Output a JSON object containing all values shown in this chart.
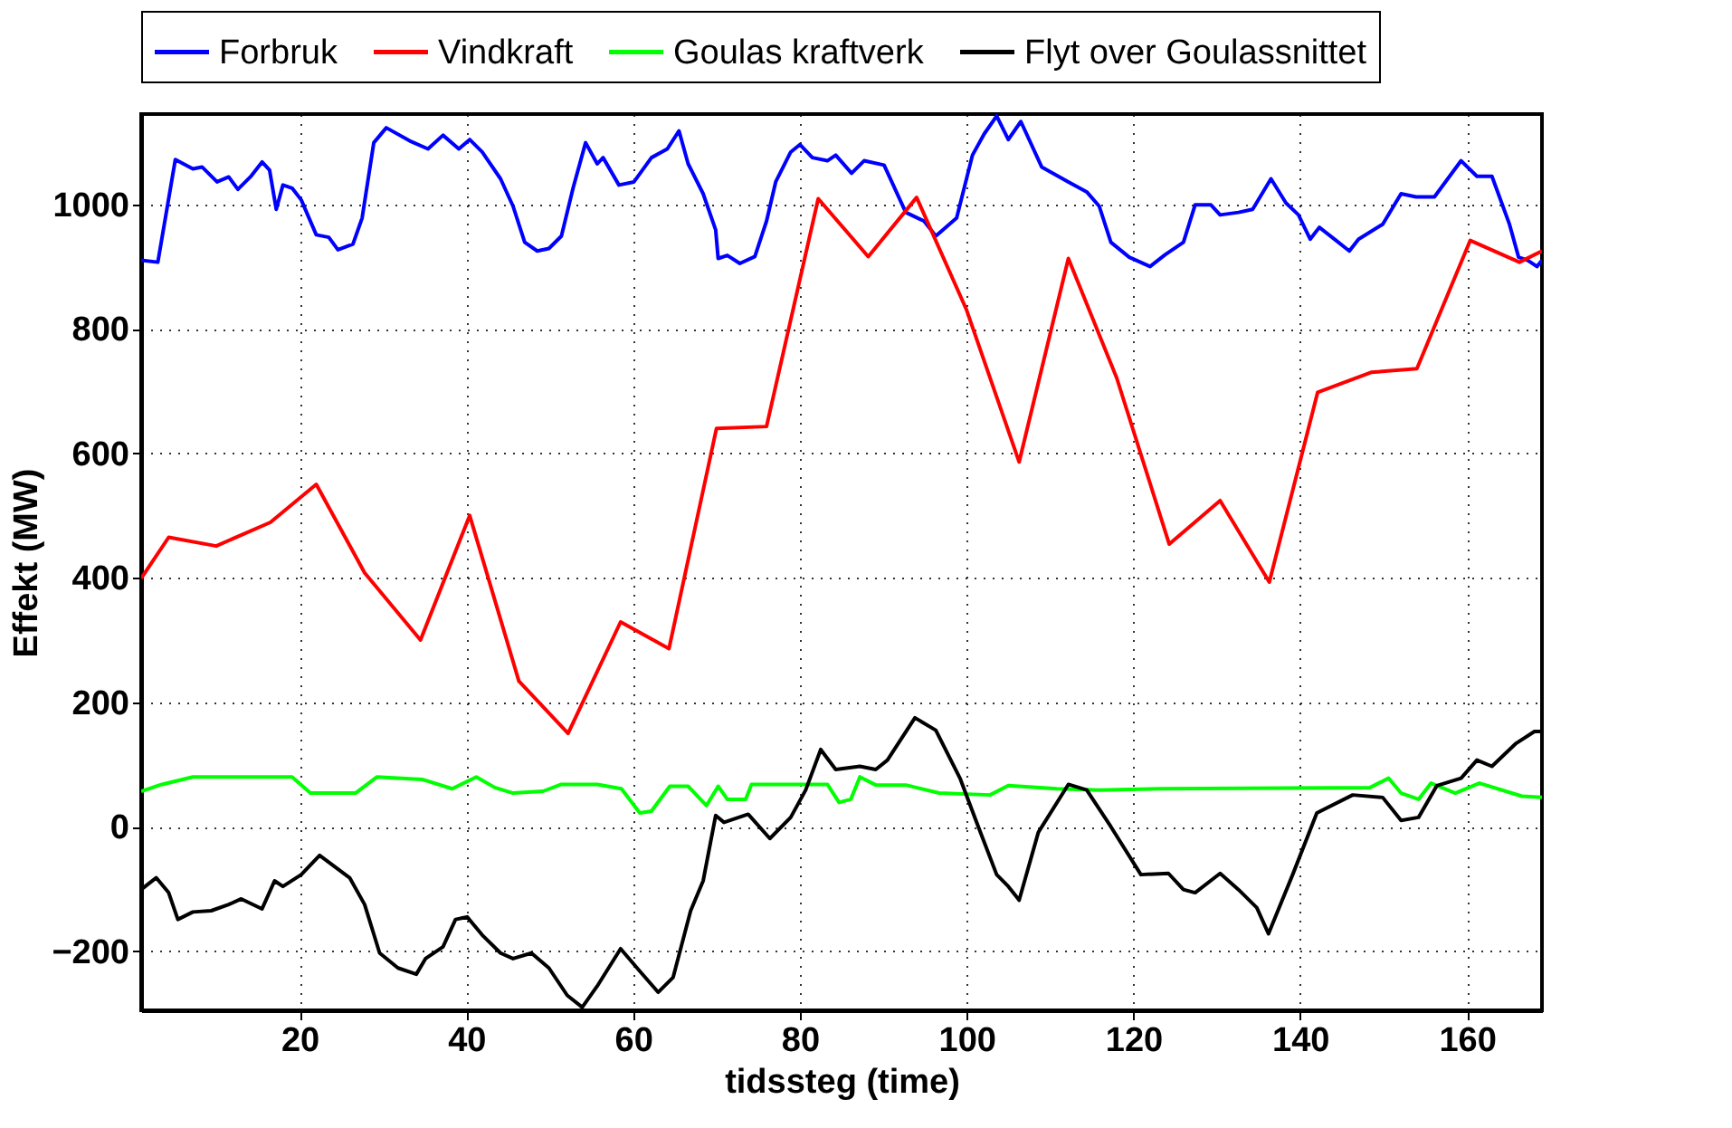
{
  "chart_data": {
    "type": "line",
    "xlabel": "tidssteg (time)",
    "ylabel": "Effekt (MW)",
    "xlim": [
      1,
      169
    ],
    "ylim": [
      -295,
      1145
    ],
    "xticks": [
      20,
      40,
      60,
      80,
      100,
      120,
      140,
      160
    ],
    "yticks": [
      -200,
      0,
      200,
      400,
      600,
      800,
      1000
    ],
    "grid": true,
    "legend": "top",
    "line_style": "solid",
    "marker": "none",
    "series": [
      {
        "name": "Forbruk",
        "color": "#0000ff",
        "x": [
          1,
          3,
          5.1,
          7.2,
          8.3,
          10.1,
          11.5,
          12.6,
          14.1,
          15.5,
          16.4,
          17.2,
          18,
          19.1,
          20.2,
          22,
          23.5,
          24.6,
          26.4,
          27.5,
          28.9,
          30.4,
          33.2,
          35.4,
          37.2,
          39.1,
          40.4,
          41.9,
          44.1,
          45.6,
          47,
          48.5,
          49.9,
          51.4,
          52.8,
          54.3,
          55.7,
          56.4,
          58.3,
          60.1,
          62.2,
          64.1,
          65.5,
          66.6,
          68.4,
          69.9,
          70.2,
          71.3,
          72.8,
          74.6,
          76,
          77.1,
          78.9,
          80,
          81.5,
          83.3,
          84.3,
          86.2,
          87.7,
          90.1,
          92.7,
          94.9,
          96.3,
          98.8,
          100.7,
          102.1,
          103.6,
          105,
          106.5,
          109,
          112.2,
          114.4,
          115.9,
          117.3,
          119.5,
          122,
          123.8,
          126,
          127.4,
          129.3,
          130.4,
          132.6,
          134.3,
          136.5,
          138.3,
          139.8,
          141.2,
          142.3,
          144.1,
          145.9,
          147,
          149.9,
          152.1,
          153.9,
          156.1,
          159.3,
          161.2,
          163,
          165.1,
          166.2,
          167.3,
          168.4,
          169
        ],
        "values": [
          910,
          907,
          1072,
          1057,
          1060,
          1036,
          1044,
          1024,
          1044,
          1068,
          1055,
          992,
          1031,
          1026,
          1007,
          951,
          947,
          927,
          936,
          978,
          1099,
          1123,
          1102,
          1089,
          1111,
          1089,
          1104,
          1084,
          1041,
          997,
          939,
          925,
          929,
          949,
          1026,
          1099,
          1065,
          1075,
          1031,
          1036,
          1075,
          1089,
          1118,
          1065,
          1017,
          959,
          913,
          918,
          905,
          916,
          973,
          1036,
          1084,
          1096,
          1075,
          1070,
          1079,
          1050,
          1070,
          1063,
          987,
          973,
          949,
          978,
          1079,
          1113,
          1142,
          1104,
          1133,
          1060,
          1036,
          1020,
          997,
          939,
          915,
          900,
          919,
          939,
          999,
          999,
          983,
          987,
          992,
          1041,
          1002,
          983,
          944,
          963,
          944,
          925,
          944,
          968,
          1017,
          1012,
          1012,
          1070,
          1045,
          1045,
          968,
          915,
          910,
          900,
          910
        ]
      },
      {
        "name": "Vindkraft",
        "color": "#ff0000",
        "x": [
          1,
          4.3,
          10,
          16.5,
          22,
          27.8,
          34.5,
          40.4,
          46.3,
          52.2,
          58.5,
          64.3,
          70,
          76,
          82.2,
          88.2,
          94,
          100,
          106.3,
          112.2,
          118,
          124.3,
          130.4,
          136.3,
          142.1,
          148.5,
          154,
          160.4,
          166.3,
          169
        ],
        "values": [
          399,
          465,
          451,
          489,
          550,
          408,
          300,
          500,
          234,
          150,
          329,
          286,
          640,
          643,
          1009,
          916,
          1011,
          830,
          586,
          913,
          721,
          454,
          524,
          393,
          698,
          730,
          736,
          942,
          907,
          925
        ]
      },
      {
        "name": "Goulas kraftverk",
        "color": "#00ff00",
        "x": [
          1,
          3.5,
          7.2,
          19.1,
          21.3,
          26.7,
          29.3,
          34.7,
          38.3,
          41.2,
          43.4,
          45.6,
          49.2,
          51.4,
          55.7,
          58.6,
          60.8,
          62.2,
          64.4,
          66.6,
          68.8,
          70.2,
          71.3,
          73.5,
          74.2,
          83.3,
          84.7,
          86.1,
          87.2,
          89.1,
          92.7,
          96.7,
          102.8,
          105,
          110.8,
          115.9,
          123.1,
          148.4,
          150.6,
          152.1,
          154.2,
          155.7,
          158.6,
          161.5,
          166.6,
          169
        ],
        "values": [
          57,
          68,
          80,
          80,
          54,
          54,
          80,
          76,
          61,
          80,
          63,
          54,
          57,
          68,
          68,
          61,
          22,
          25,
          65,
          65,
          34,
          65,
          44,
          44,
          68,
          68,
          39,
          44,
          80,
          67,
          67,
          54,
          51,
          66,
          61,
          59,
          61,
          63,
          78,
          54,
          44,
          70,
          54,
          70,
          49,
          47
        ]
      },
      {
        "name": "Flyt over Goulassnittet",
        "color": "#000000",
        "x": [
          1,
          2.8,
          4.3,
          5.4,
          7.2,
          9.4,
          11.5,
          13,
          15.5,
          17,
          18,
          20.2,
          22.4,
          26,
          27.8,
          29.6,
          31.8,
          34,
          35.1,
          37.2,
          38.7,
          40.1,
          41.9,
          44.1,
          45.6,
          47.8,
          49.9,
          52.1,
          53.9,
          55.7,
          58.5,
          60.8,
          63,
          64.8,
          66.9,
          68.4,
          69.9,
          70.9,
          73.8,
          76.4,
          78.9,
          80.7,
          82.5,
          84.3,
          87.2,
          89.1,
          90.5,
          93.8,
          96.3,
          99.2,
          101.4,
          103.6,
          105,
          106.3,
          108.6,
          112.2,
          114.4,
          117.3,
          120.9,
          124.2,
          126,
          127.4,
          130.4,
          132.6,
          134.8,
          136.2,
          139.1,
          142,
          146.3,
          149.9,
          152.1,
          154.2,
          156.4,
          159.3,
          161.2,
          163,
          165.9,
          168.1,
          169
        ],
        "values": [
          -101,
          -82,
          -106,
          -149,
          -137,
          -135,
          -125,
          -116,
          -132,
          -87,
          -96,
          -77,
          -46,
          -82,
          -125,
          -203,
          -227,
          -237,
          -212,
          -193,
          -149,
          -145,
          -174,
          -203,
          -212,
          -203,
          -227,
          -271,
          -290,
          -256,
          -196,
          -232,
          -266,
          -242,
          -135,
          -87,
          18,
          7,
          20,
          -19,
          15,
          59,
          124,
          92,
          97,
          92,
          107,
          175,
          155,
          78,
          0,
          -77,
          -96,
          -118,
          -9,
          68,
          59,
          0,
          -77,
          -75,
          -101,
          -106,
          -75,
          -101,
          -130,
          -172,
          -77,
          22,
          51,
          47,
          10,
          15,
          66,
          78,
          107,
          97,
          134,
          153,
          153
        ]
      }
    ]
  }
}
